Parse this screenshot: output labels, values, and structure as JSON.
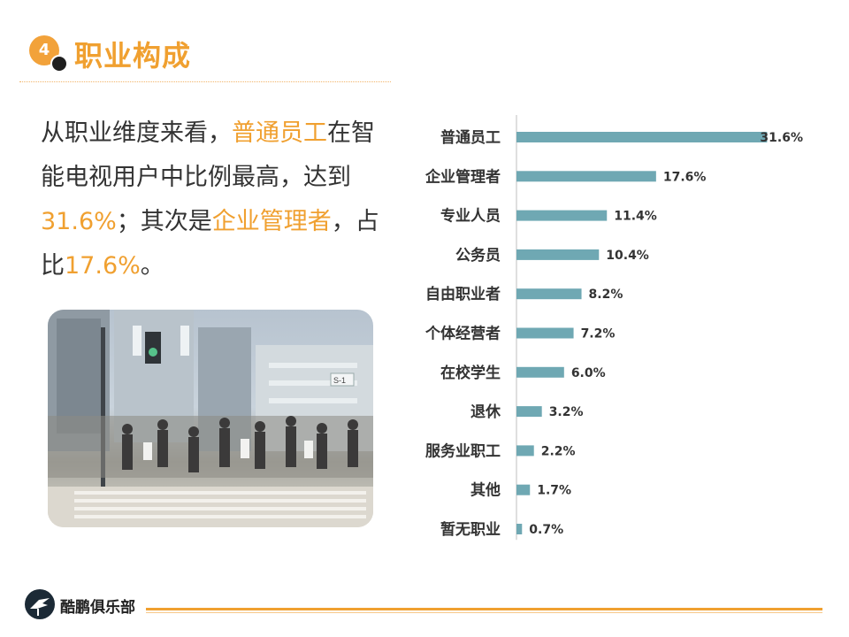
{
  "header": {
    "badge_number": "4",
    "title": "职业构成"
  },
  "description": {
    "p1": "从职业维度来看，",
    "h1": "普通员工",
    "p2": "在智能电视用户中比例最高，达到",
    "h2": "31.6%",
    "p3": "；其次是",
    "h3": "企业管理者",
    "p4": "，占比",
    "h4": "17.6%",
    "p5": "。"
  },
  "photo": {
    "signs": [
      "S-1"
    ]
  },
  "footer": {
    "brand": "酷鹏俱乐部"
  },
  "colors": {
    "accent": "#f0a030",
    "bar": "#6fa8b3",
    "text": "#333333"
  },
  "chart_data": {
    "type": "bar",
    "orientation": "horizontal",
    "categories": [
      "普通员工",
      "企业管理者",
      "专业人员",
      "公务员",
      "自由职业者",
      "个体经营者",
      "在校学生",
      "退休",
      "服务业职工",
      "其他",
      "暂无职业"
    ],
    "values": [
      31.6,
      17.6,
      11.4,
      10.4,
      8.2,
      7.2,
      6.0,
      3.2,
      2.2,
      1.7,
      0.7
    ],
    "labels": [
      "31.6%",
      "17.6%",
      "11.4%",
      "10.4%",
      "8.2%",
      "7.2%",
      "6.0%",
      "3.2%",
      "2.2%",
      "1.7%",
      "0.7%"
    ],
    "title": "",
    "xlabel": "",
    "ylabel": "",
    "xlim": [
      0,
      32
    ],
    "grid": false
  }
}
